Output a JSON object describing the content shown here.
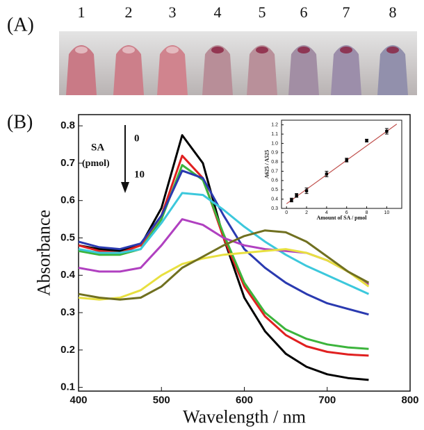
{
  "panel_a": {
    "label": "(A)",
    "tube_labels": [
      "1",
      "2",
      "3",
      "4",
      "5",
      "6",
      "7",
      "8"
    ]
  },
  "chart_data": [
    {
      "type": "line",
      "panel_label": "(B)",
      "xlabel": "Wavelength / nm",
      "ylabel": "Absorbance",
      "x": [
        400,
        425,
        450,
        475,
        500,
        525,
        550,
        575,
        600,
        625,
        650,
        675,
        700,
        725,
        750
      ],
      "series": [
        {
          "color": "#000000",
          "values": [
            0.48,
            0.47,
            0.465,
            0.48,
            0.58,
            0.775,
            0.7,
            0.5,
            0.34,
            0.25,
            0.19,
            0.155,
            0.135,
            0.125,
            0.12
          ]
        },
        {
          "color": "#e02020",
          "values": [
            0.48,
            0.465,
            0.46,
            0.48,
            0.56,
            0.72,
            0.66,
            0.5,
            0.37,
            0.29,
            0.24,
            0.21,
            0.195,
            0.188,
            0.185
          ]
        },
        {
          "color": "#3cb43c",
          "values": [
            0.465,
            0.455,
            0.455,
            0.47,
            0.55,
            0.695,
            0.655,
            0.51,
            0.38,
            0.3,
            0.255,
            0.23,
            0.215,
            0.207,
            0.203
          ]
        },
        {
          "color": "#2a3ab0",
          "values": [
            0.49,
            0.475,
            0.47,
            0.485,
            0.56,
            0.68,
            0.66,
            0.56,
            0.47,
            0.42,
            0.38,
            0.35,
            0.325,
            0.31,
            0.295
          ]
        },
        {
          "color": "#3cc8dc",
          "values": [
            0.47,
            0.46,
            0.46,
            0.47,
            0.54,
            0.62,
            0.615,
            0.575,
            0.53,
            0.49,
            0.455,
            0.425,
            0.4,
            0.375,
            0.35
          ]
        },
        {
          "color": "#b040c0",
          "values": [
            0.42,
            0.41,
            0.41,
            0.42,
            0.48,
            0.55,
            0.535,
            0.5,
            0.48,
            0.47,
            0.465,
            0.46,
            0.44,
            0.41,
            0.375
          ]
        },
        {
          "color": "#e8e040",
          "values": [
            0.34,
            0.335,
            0.34,
            0.36,
            0.4,
            0.43,
            0.445,
            0.455,
            0.46,
            0.465,
            0.47,
            0.46,
            0.44,
            0.41,
            0.37
          ]
        },
        {
          "color": "#707020",
          "values": [
            0.35,
            0.34,
            0.335,
            0.34,
            0.37,
            0.42,
            0.45,
            0.48,
            0.505,
            0.52,
            0.515,
            0.49,
            0.45,
            0.41,
            0.38
          ]
        }
      ],
      "xlim": [
        400,
        800
      ],
      "xticks": [
        400,
        500,
        600,
        700,
        800
      ],
      "ylim": [
        0.09,
        0.83
      ],
      "yticks": [
        0.1,
        0.2,
        0.3,
        0.4,
        0.5,
        0.6,
        0.7,
        0.8
      ],
      "annotations": [
        "SA",
        "(pmol)",
        "0",
        "10"
      ]
    },
    {
      "type": "scatter",
      "xlabel": "Amount of SA / pmol",
      "ylabel": "A625 / A525",
      "x": [
        0.5,
        1,
        2,
        4,
        6,
        8,
        10
      ],
      "values": [
        0.39,
        0.44,
        0.49,
        0.67,
        0.82,
        1.03,
        1.13
      ],
      "errors": [
        0.02,
        0.02,
        0.03,
        0.03,
        0.02,
        0.015,
        0.03
      ],
      "color": "#000000",
      "fit": {
        "x": [
          0,
          11
        ],
        "values": [
          0.35,
          1.208
        ],
        "color": "#c0504d"
      },
      "xlim": [
        -0.5,
        11.5
      ],
      "xticks": [
        0,
        2,
        4,
        6,
        8,
        10
      ],
      "ylim": [
        0.3,
        1.25
      ],
      "yticks": [
        0.3,
        0.4,
        0.5,
        0.6,
        0.7,
        0.8,
        0.9,
        {
          "value": 1,
          "label": "1.0"
        },
        1.1,
        1.2
      ]
    }
  ]
}
